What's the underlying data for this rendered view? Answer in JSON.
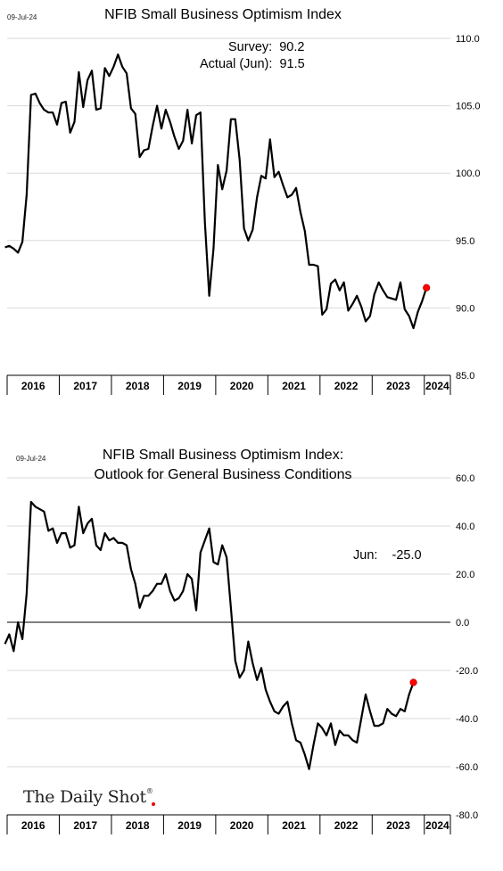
{
  "chart_data": [
    {
      "type": "line",
      "date_stamp": "09-Jul-24",
      "title": "NFIB Small Business Optimism Index",
      "annotations": [
        "Survey:  90.2",
        "Actual (Jun):  91.5"
      ],
      "xlabel": "",
      "ylabel": "",
      "x_categories": [
        "2016",
        "2017",
        "2018",
        "2019",
        "2020",
        "2021",
        "2022",
        "2023",
        "2024"
      ],
      "ylim": [
        85.0,
        110.0
      ],
      "yticks": [
        85.0,
        90.0,
        95.0,
        100.0,
        105.0,
        110.0
      ],
      "ytick_labels": [
        "85.0",
        "90.0",
        "95.0",
        "100.0",
        "105.0",
        "110.0"
      ],
      "grid": "horizontal",
      "line_color": "#000000",
      "marker_color": "#ff0000",
      "series": [
        {
          "start": "2015-12",
          "frequency": "monthly",
          "values": [
            94.5,
            94.6,
            94.4,
            94.1,
            94.9,
            98.4,
            105.8,
            105.9,
            105.2,
            104.7,
            104.5,
            104.5,
            103.6,
            105.2,
            105.3,
            103.0,
            103.8,
            107.5,
            104.9,
            106.9,
            107.6,
            104.7,
            104.8,
            107.8,
            107.2,
            107.9,
            108.8,
            107.9,
            107.4,
            104.8,
            104.4,
            101.2,
            101.7,
            101.8,
            103.5,
            105.0,
            103.3,
            104.7,
            103.8,
            102.7,
            101.8,
            102.4,
            104.7,
            102.2,
            104.3,
            104.5,
            96.4,
            90.9,
            94.4,
            100.6,
            98.8,
            100.2,
            104.0,
            104.0,
            101.0,
            95.9,
            95.0,
            95.8,
            98.2,
            99.8,
            99.6,
            102.5,
            99.7,
            100.1,
            99.1,
            98.2,
            98.4,
            98.9,
            97.1,
            95.7,
            93.2,
            93.2,
            93.1,
            89.5,
            89.9,
            91.8,
            92.1,
            91.3,
            91.9,
            89.8,
            90.3,
            90.9,
            90.1,
            89.0,
            89.4,
            91.0,
            91.9,
            91.3,
            90.8,
            90.7,
            90.6,
            91.9,
            89.9,
            89.4,
            88.5,
            89.7,
            90.5,
            91.5
          ]
        }
      ]
    },
    {
      "type": "line",
      "date_stamp": "09-Jul-24",
      "title": "NFIB Small Business Optimism Index:\nOutlook for General Business Conditions",
      "annotations": [
        "Jun:    -25.0"
      ],
      "xlabel": "",
      "ylabel": "",
      "x_categories": [
        "2016",
        "2017",
        "2018",
        "2019",
        "2020",
        "2021",
        "2022",
        "2023",
        "2024"
      ],
      "ylim": [
        -80.0,
        60.0
      ],
      "yticks": [
        -80.0,
        -60.0,
        -40.0,
        -20.0,
        0.0,
        20.0,
        40.0,
        60.0
      ],
      "ytick_labels": [
        "-80.0",
        "-60.0",
        "-40.0",
        "-20.0",
        "0.0",
        "20.0",
        "40.0",
        "60.0"
      ],
      "zero_line": true,
      "grid": "horizontal",
      "line_color": "#000000",
      "marker_color": "#ff0000",
      "series": [
        {
          "start": "2015-12",
          "frequency": "monthly",
          "values": [
            -9,
            -5,
            -12,
            0,
            -7,
            12,
            50,
            48,
            47,
            46,
            38,
            39,
            33,
            37,
            37,
            31,
            32,
            48,
            37,
            41,
            43,
            32,
            30,
            37,
            34,
            35,
            33,
            33,
            32,
            22,
            16,
            6,
            11,
            11,
            13,
            16,
            16,
            20,
            13,
            9,
            10,
            13,
            20,
            18,
            5,
            29,
            34,
            39,
            25,
            24,
            32,
            27,
            6,
            -16,
            -23,
            -20,
            -8,
            -17,
            -24,
            -19,
            -28,
            -33,
            -37,
            -38,
            -35,
            -33,
            -42,
            -49,
            -50,
            -55,
            -61,
            -51,
            -42,
            -44,
            -47,
            -42,
            -51,
            -45,
            -47,
            -47,
            -49,
            -50,
            -40,
            -30,
            -37,
            -43,
            -43,
            -42,
            -36,
            -38,
            -39,
            -36,
            -37,
            -30,
            -25
          ]
        }
      ]
    }
  ],
  "logo": {
    "text": "The Daily Shot",
    "mark": "®"
  }
}
